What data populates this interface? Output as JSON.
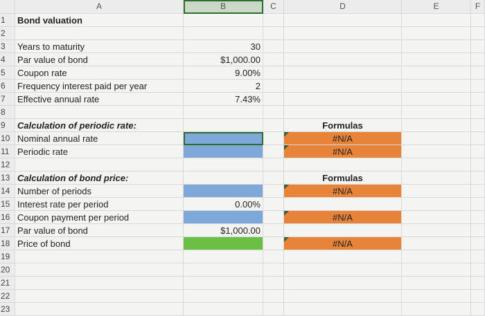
{
  "columns": [
    "A",
    "B",
    "C",
    "D",
    "E",
    "F"
  ],
  "rows": [
    {
      "number": 1,
      "a": "Bond valuation"
    },
    {
      "number": 2
    },
    {
      "number": 3,
      "a": "Years to maturity",
      "b": "30"
    },
    {
      "number": 4,
      "a": "Par value of bond",
      "b": "$1,000.00"
    },
    {
      "number": 5,
      "a": "Coupon rate",
      "b": "9.00%"
    },
    {
      "number": 6,
      "a": "Frequency interest paid per year",
      "b": "2"
    },
    {
      "number": 7,
      "a": "Effective annual rate",
      "b": "7.43%"
    },
    {
      "number": 8
    },
    {
      "number": 9,
      "a": "Calculation of periodic rate:",
      "d": "Formulas"
    },
    {
      "number": 10,
      "a": "Nominal annual rate",
      "d": "#N/A"
    },
    {
      "number": 11,
      "a": "Periodic rate",
      "d": "#N/A"
    },
    {
      "number": 12
    },
    {
      "number": 13,
      "a": "Calculation of bond price:",
      "d": "Formulas"
    },
    {
      "number": 14,
      "a": "Number of periods",
      "d": "#N/A"
    },
    {
      "number": 15,
      "a": "Interest rate per period",
      "b": "0.00%"
    },
    {
      "number": 16,
      "a": "Coupon payment per period",
      "d": "#N/A"
    },
    {
      "number": 17,
      "a": "Par value of bond",
      "b": "$1,000.00"
    },
    {
      "number": 18,
      "a": "Price of bond",
      "d": "#N/A"
    },
    {
      "number": 19
    },
    {
      "number": 20
    },
    {
      "number": 21
    },
    {
      "number": 22
    },
    {
      "number": 23
    }
  ]
}
